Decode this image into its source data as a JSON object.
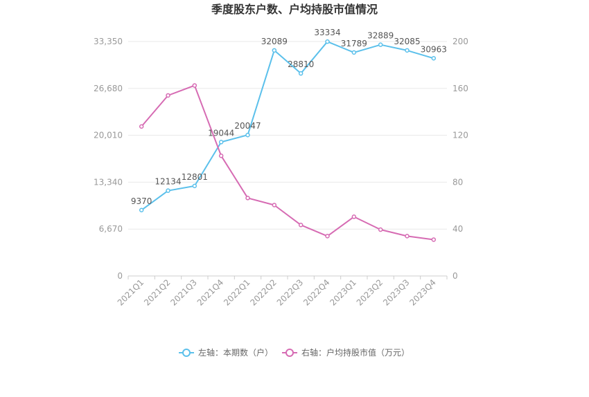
{
  "chart_data": {
    "type": "line",
    "title": "季度股东户数、户均持股市值情况",
    "categories": [
      "2021Q1",
      "2021Q2",
      "2021Q3",
      "2021Q4",
      "2022Q1",
      "2022Q2",
      "2022Q3",
      "2022Q4",
      "2023Q1",
      "2023Q2",
      "2023Q3",
      "2023Q4"
    ],
    "left_axis": {
      "min": 0,
      "max": 33350,
      "ticks": [
        "0",
        "6,670",
        "13,340",
        "20,010",
        "26,680",
        "33,350"
      ],
      "tick_values": [
        0,
        6670,
        13340,
        20010,
        26680,
        33350
      ]
    },
    "right_axis": {
      "min": 0,
      "max": 200,
      "ticks": [
        "0",
        "40",
        "80",
        "120",
        "160",
        "200"
      ],
      "tick_values": [
        0,
        40,
        80,
        120,
        160,
        200
      ]
    },
    "grid": true,
    "legend_position": "bottom",
    "series": [
      {
        "name": "左轴：本期数（户）",
        "axis": "left",
        "color": "#5bc0eb",
        "values": [
          9370,
          12134,
          12801,
          19044,
          20047,
          32089,
          28810,
          33334,
          31789,
          32889,
          32085,
          30963
        ],
        "labels": [
          "9370",
          "12134",
          "12801",
          "19044",
          "20047",
          "32089",
          "28810",
          "33334",
          "31789",
          "32889",
          "32085",
          "30963"
        ]
      },
      {
        "name": "右轴：户均持股市值（万元）",
        "axis": "right",
        "color": "#d66bb3",
        "values": [
          127.5,
          154,
          162.5,
          102.5,
          66.5,
          60.5,
          43.5,
          34,
          50.5,
          39.5,
          34,
          31
        ]
      }
    ]
  }
}
